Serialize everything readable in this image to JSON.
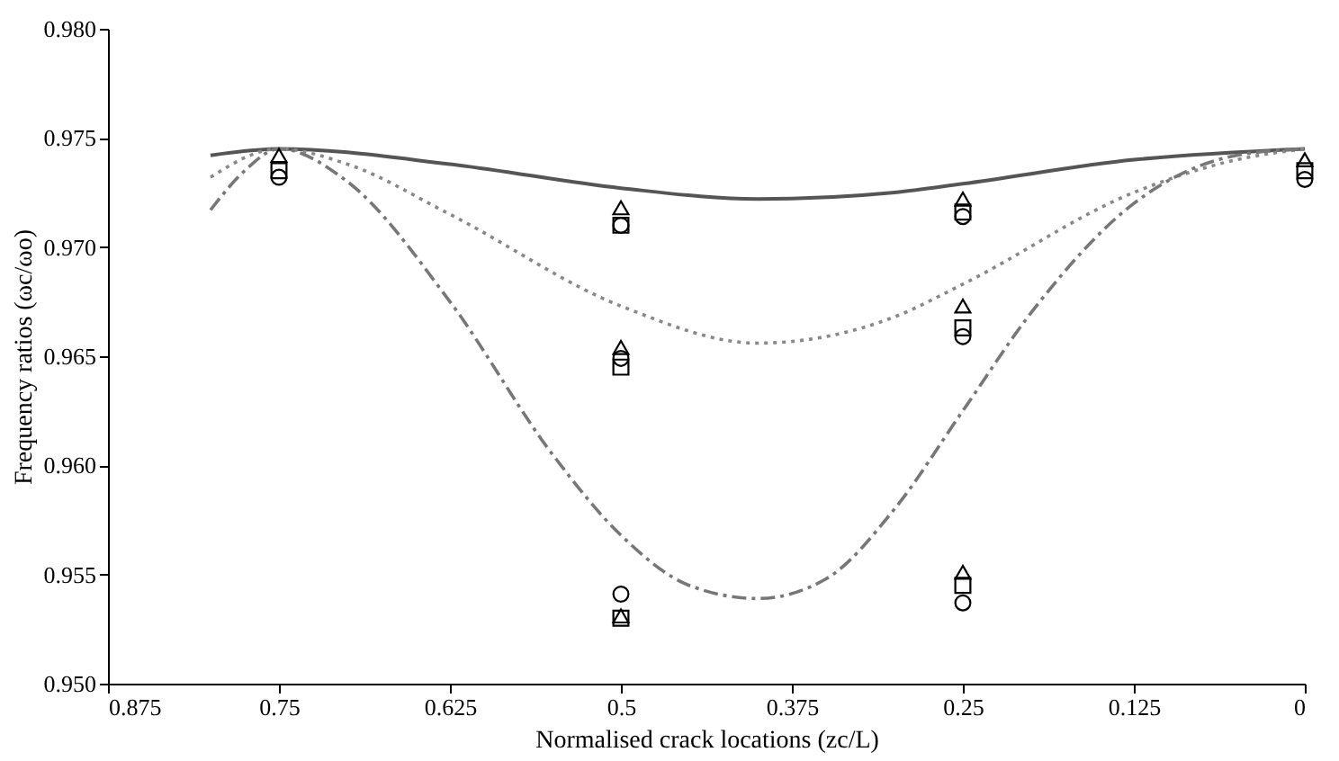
{
  "chart_data": {
    "type": "line",
    "xlabel": "Normalised crack locations (zc/L)",
    "ylabel": "Frequency ratios (ωc/ωo)",
    "xlim": [
      0.875,
      0
    ],
    "xticks": [
      0.875,
      0.75,
      0.625,
      0.5,
      0.375,
      0.25,
      0.125,
      0
    ],
    "ylim": [
      0.95,
      0.98
    ],
    "yticks": [
      {
        "value": 0.95,
        "label": "0.950"
      },
      {
        "value": 0.955,
        "label": "0.955"
      },
      {
        "value": 0.96,
        "label": "0.960"
      },
      {
        "value": 0.965,
        "label": "0.965"
      },
      {
        "value": 0.97,
        "label": "0.970"
      },
      {
        "value": 0.975,
        "label": "0.975"
      },
      {
        "value": 0.98,
        "label": "0.980"
      }
    ],
    "grid": false,
    "series": [
      {
        "line_style": "solid",
        "color": "#555555",
        "x": [
          0.8,
          0.75,
          0.625,
          0.5,
          0.4,
          0.3,
          0.25,
          0.125,
          0
        ],
        "values": [
          0.9742,
          0.9745,
          0.9738,
          0.9727,
          0.9722,
          0.9725,
          0.9729,
          0.974,
          0.9745
        ]
      },
      {
        "line_style": "dotted",
        "color": "#888888",
        "x": [
          0.8,
          0.75,
          0.7,
          0.625,
          0.5,
          0.4,
          0.3,
          0.25,
          0.125,
          0.05,
          0
        ],
        "values": [
          0.9732,
          0.9745,
          0.9738,
          0.9715,
          0.9673,
          0.9656,
          0.9668,
          0.9683,
          0.9725,
          0.974,
          0.9745
        ]
      },
      {
        "line_style": "dashed",
        "color": "#777777",
        "x": [
          0.8,
          0.775,
          0.75,
          0.7,
          0.625,
          0.55,
          0.5,
          0.45,
          0.4,
          0.35,
          0.3,
          0.25,
          0.2,
          0.125,
          0.05,
          0
        ],
        "values": [
          0.9717,
          0.9735,
          0.9745,
          0.973,
          0.9675,
          0.9605,
          0.9568,
          0.9545,
          0.9539,
          0.9548,
          0.958,
          0.9625,
          0.967,
          0.972,
          0.9742,
          0.9745
        ]
      },
      {
        "type": "scatter",
        "marker": "triangle",
        "color": "#000000",
        "x": [
          0.75,
          0.5,
          0.5,
          0.5,
          0.25,
          0.25,
          0.25,
          0
        ],
        "values": [
          0.9742,
          0.9718,
          0.9654,
          0.9531,
          0.9722,
          0.9673,
          0.9551,
          0.974
        ]
      },
      {
        "type": "scatter",
        "marker": "square",
        "color": "#000000",
        "x": [
          0.75,
          0.5,
          0.5,
          0.5,
          0.25,
          0.25,
          0.25,
          0
        ],
        "values": [
          0.9735,
          0.971,
          0.9645,
          0.953,
          0.9716,
          0.9663,
          0.9545,
          0.9735
        ]
      },
      {
        "type": "scatter",
        "marker": "circle",
        "color": "#000000",
        "x": [
          0.75,
          0.5,
          0.5,
          0.5,
          0.25,
          0.25,
          0.25,
          0
        ],
        "values": [
          0.9732,
          0.971,
          0.9649,
          0.9541,
          0.9714,
          0.9659,
          0.9537,
          0.9731
        ]
      }
    ]
  }
}
